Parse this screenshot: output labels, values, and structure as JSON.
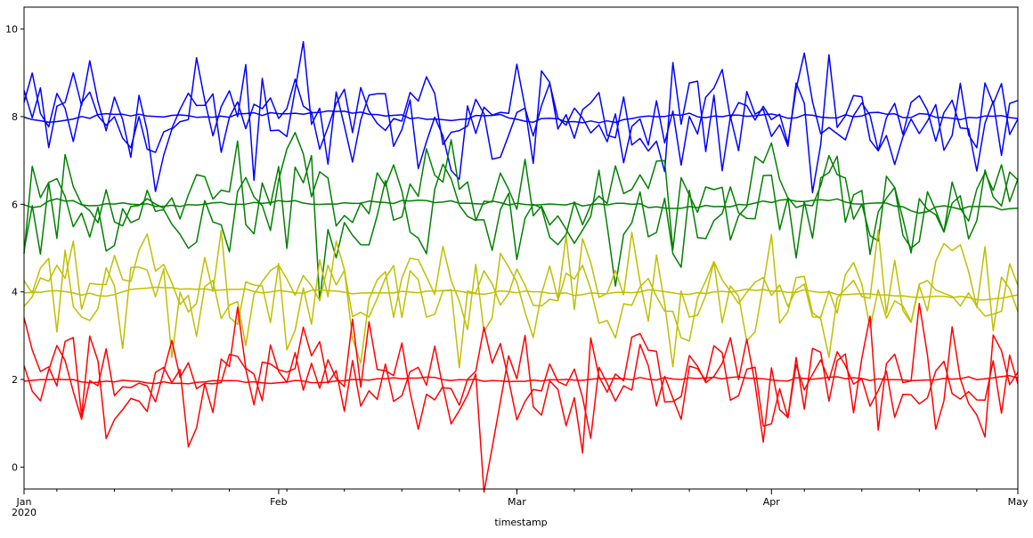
{
  "chart_data": {
    "type": "line",
    "title": "",
    "xlabel": "timestamp",
    "ylabel": "",
    "x_range": [
      "2020-01-01",
      "2020-05-01"
    ],
    "ylim": [
      -0.5,
      10.5
    ],
    "grid": false,
    "legend": "none",
    "x_ticks": [
      {
        "date": "2020-01-01",
        "label": "Jan",
        "sublabel": "2020"
      },
      {
        "date": "2020-02-01",
        "label": "Feb",
        "sublabel": ""
      },
      {
        "date": "2020-03-01",
        "label": "Mar",
        "sublabel": ""
      },
      {
        "date": "2020-04-01",
        "label": "Apr",
        "sublabel": ""
      },
      {
        "date": "2020-05-01",
        "label": "May",
        "sublabel": ""
      }
    ],
    "y_ticks": [
      0,
      2,
      4,
      6,
      8,
      10
    ],
    "groups": [
      {
        "color": "#0000ff",
        "base": 8,
        "smooth_amp": 0.15,
        "wiggle_amp": 0.45,
        "noisy_amp": 0.7,
        "seed": 11
      },
      {
        "color": "#008000",
        "base": 6,
        "smooth_amp": 0.15,
        "wiggle_amp": 0.5,
        "noisy_amp": 0.75,
        "seed": 23
      },
      {
        "color": "#bfbf00",
        "base": 4,
        "smooth_amp": 0.12,
        "wiggle_amp": 0.45,
        "noisy_amp": 0.75,
        "seed": 37
      },
      {
        "color": "#ff0000",
        "base": 2,
        "smooth_amp": 0.12,
        "wiggle_amp": 0.45,
        "noisy_amp": 0.75,
        "seed": 51
      }
    ]
  }
}
